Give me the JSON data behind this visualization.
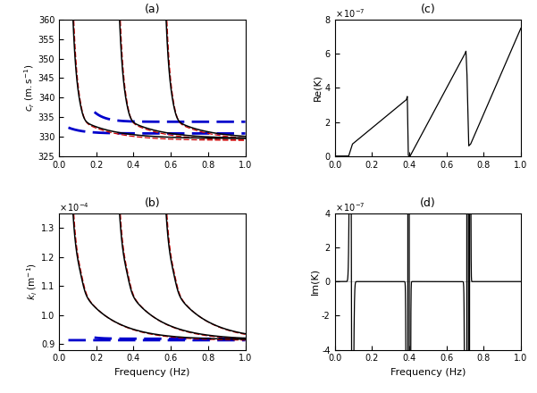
{
  "title_a": "(a)",
  "title_b": "(b)",
  "title_c": "(c)",
  "title_d": "(d)",
  "ylabel_a": "c_r (m.s^{-1})",
  "ylabel_b": "k_i (m^{-1})",
  "ylabel_c": "Re(K)",
  "ylabel_d": "Im(K)",
  "xlabel_bottom": "Frequency (Hz)",
  "ylim_a": [
    325,
    360
  ],
  "ylim_b": [
    8.8e-05,
    0.000135
  ],
  "ylim_c": [
    0,
    8e-07
  ],
  "ylim_d": [
    -4e-07,
    4e-07
  ],
  "xlim": [
    0,
    1
  ],
  "background_color": "#ffffff",
  "black_color": "#000000",
  "red_color": "#cc0000",
  "blue_color": "#0000cc"
}
